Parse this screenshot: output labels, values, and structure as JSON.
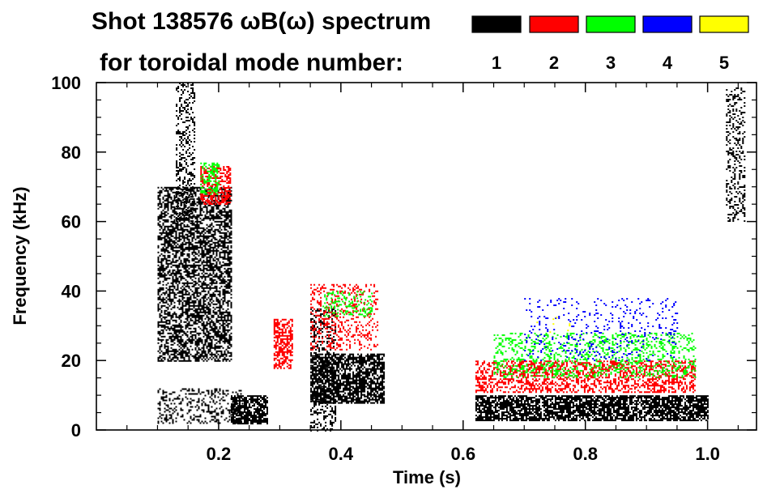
{
  "chart_data": {
    "type": "heatmap",
    "title_line1": "Shot 138576 ωB(ω) spectrum",
    "title_line2": "for toroidal mode number:",
    "xlabel": "Time (s)",
    "ylabel": "Frequency (kHz)",
    "xlim": [
      0.0,
      1.08
    ],
    "ylim": [
      0,
      100
    ],
    "x_ticks": [
      {
        "value": 0.2,
        "label": "0.2"
      },
      {
        "value": 0.4,
        "label": "0.4"
      },
      {
        "value": 0.6,
        "label": "0.6"
      },
      {
        "value": 0.8,
        "label": "0.8"
      },
      {
        "value": 1.0,
        "label": "1.0"
      }
    ],
    "y_ticks": [
      {
        "value": 0,
        "label": "0"
      },
      {
        "value": 20,
        "label": "20"
      },
      {
        "value": 40,
        "label": "40"
      },
      {
        "value": 60,
        "label": "60"
      },
      {
        "value": 80,
        "label": "80"
      },
      {
        "value": 100,
        "label": "100"
      }
    ],
    "legend": [
      {
        "n": "1",
        "color": "#000000"
      },
      {
        "n": "2",
        "color": "#ff0000"
      },
      {
        "n": "3",
        "color": "#00ff00"
      },
      {
        "n": "4",
        "color": "#0000ff"
      },
      {
        "n": "5",
        "color": "#ffff00"
      }
    ],
    "series": [
      {
        "name": "n=1",
        "color": "#000000",
        "regions": [
          {
            "t0": 0.1,
            "t1": 0.22,
            "f0": 20,
            "f1": 70,
            "fill": 0.55
          },
          {
            "t0": 0.1,
            "t1": 0.24,
            "f0": 2,
            "f1": 12,
            "fill": 0.3
          },
          {
            "t0": 0.13,
            "t1": 0.16,
            "f0": 60,
            "f1": 100,
            "fill": 0.3
          },
          {
            "t0": 0.22,
            "t1": 0.28,
            "f0": 2,
            "f1": 10,
            "fill": 0.75
          },
          {
            "t0": 0.35,
            "t1": 0.47,
            "f0": 8,
            "f1": 22,
            "fill": 0.7
          },
          {
            "t0": 0.35,
            "t1": 0.39,
            "f0": 0,
            "f1": 35,
            "fill": 0.3
          },
          {
            "t0": 0.62,
            "t1": 1.0,
            "f0": 3,
            "f1": 10,
            "fill": 0.75
          },
          {
            "t0": 1.03,
            "t1": 1.06,
            "f0": 60,
            "f1": 100,
            "fill": 0.3
          }
        ]
      },
      {
        "name": "n=2",
        "color": "#ff0000",
        "regions": [
          {
            "t0": 0.17,
            "t1": 0.22,
            "f0": 65,
            "f1": 76,
            "fill": 0.5
          },
          {
            "t0": 0.29,
            "t1": 0.32,
            "f0": 18,
            "f1": 32,
            "fill": 0.6
          },
          {
            "t0": 0.35,
            "t1": 0.46,
            "f0": 23,
            "f1": 42,
            "fill": 0.25
          },
          {
            "t0": 0.62,
            "t1": 0.98,
            "f0": 11,
            "f1": 20,
            "fill": 0.45
          }
        ]
      },
      {
        "name": "n=3",
        "color": "#00ff00",
        "regions": [
          {
            "t0": 0.17,
            "t1": 0.2,
            "f0": 68,
            "f1": 77,
            "fill": 0.4
          },
          {
            "t0": 0.37,
            "t1": 0.45,
            "f0": 33,
            "f1": 40,
            "fill": 0.25
          },
          {
            "t0": 0.65,
            "t1": 0.98,
            "f0": 15,
            "f1": 28,
            "fill": 0.25
          }
        ]
      },
      {
        "name": "n=4",
        "color": "#0000ff",
        "regions": [
          {
            "t0": 0.7,
            "t1": 0.95,
            "f0": 20,
            "f1": 38,
            "fill": 0.1
          }
        ]
      },
      {
        "name": "n=5",
        "color": "#ffff00",
        "regions": [
          {
            "t0": 0.72,
            "t1": 0.78,
            "f0": 28,
            "f1": 34,
            "fill": 0.03
          }
        ]
      }
    ]
  }
}
